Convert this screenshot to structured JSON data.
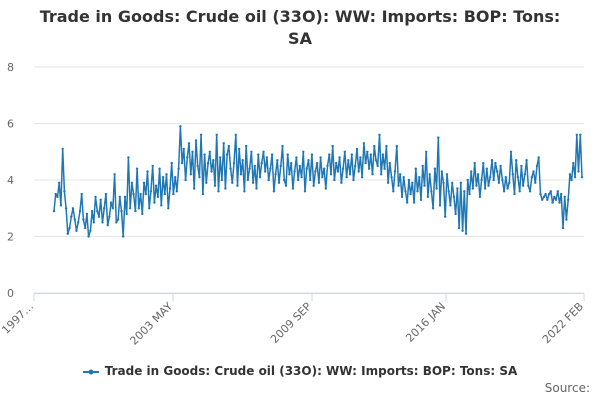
{
  "chart_data": {
    "type": "line",
    "title_line1": "Trade in Goods: Crude oil (33O): WW: Imports: BOP: Tons:",
    "title_line2": "SA",
    "legend": {
      "label": "Trade in Goods: Crude oil (33O): WW: Imports: BOP: Tons: SA",
      "placement": "bottom-center"
    },
    "credits": "Source:",
    "ylim": [
      0,
      8
    ],
    "y_ticks": [
      "0",
      "2",
      "4",
      "6",
      "8"
    ],
    "x_tick_labels": [
      "1997…",
      "2003 MAY",
      "2009 SEP",
      "2016 JAN",
      "2022 FEB"
    ],
    "grid": "horizontal",
    "series_color": "#1f77b4",
    "series": [
      {
        "name": "Trade in Goods: Crude oil (33O): WW: Imports: BOP: Tons: SA",
        "x_start": "1997-01",
        "frequency": "monthly",
        "values": [
          2.9,
          3.5,
          3.4,
          3.9,
          3.1,
          5.1,
          3.6,
          3.0,
          2.1,
          2.3,
          2.7,
          3.0,
          2.6,
          2.2,
          2.5,
          2.9,
          3.5,
          2.6,
          2.3,
          2.8,
          2.0,
          2.2,
          2.9,
          2.5,
          3.4,
          2.9,
          2.7,
          3.3,
          2.5,
          3.0,
          3.5,
          2.4,
          2.7,
          3.2,
          3.0,
          4.2,
          2.5,
          2.6,
          3.4,
          2.9,
          2.0,
          3.4,
          2.8,
          4.8,
          3.0,
          3.9,
          3.5,
          2.9,
          4.4,
          3.0,
          3.5,
          2.8,
          3.9,
          3.5,
          4.3,
          3.0,
          3.6,
          4.5,
          3.2,
          3.8,
          3.4,
          4.4,
          3.1,
          4.1,
          3.5,
          4.2,
          3.0,
          3.7,
          4.6,
          3.5,
          4.1,
          3.6,
          4.4,
          5.9,
          4.6,
          5.1,
          4.0,
          4.8,
          5.3,
          4.2,
          5.0,
          3.7,
          5.4,
          4.5,
          4.1,
          5.6,
          3.5,
          4.9,
          3.9,
          4.6,
          5.0,
          4.3,
          4.7,
          3.8,
          5.6,
          3.6,
          4.8,
          4.0,
          5.3,
          3.7,
          4.9,
          5.2,
          4.4,
          3.9,
          4.6,
          5.6,
          3.8,
          5.1,
          4.2,
          4.7,
          3.6,
          5.2,
          4.0,
          4.4,
          5.0,
          3.9,
          4.5,
          3.7,
          4.9,
          4.1,
          4.6,
          5.0,
          4.3,
          4.8,
          4.0,
          4.4,
          4.9,
          3.6,
          4.2,
          4.7,
          3.9,
          4.5,
          5.2,
          4.0,
          3.8,
          4.9,
          4.2,
          4.6,
          3.7,
          4.3,
          4.8,
          4.0,
          4.5,
          4.1,
          5.0,
          3.6,
          4.4,
          4.7,
          4.0,
          4.9,
          3.8,
          4.3,
          4.6,
          3.9,
          4.8,
          4.1,
          4.4,
          3.7,
          4.5,
          4.9,
          4.2,
          5.2,
          4.0,
          4.6,
          4.3,
          4.8,
          3.9,
          4.4,
          5.0,
          4.1,
          4.7,
          4.2,
          4.9,
          4.0,
          4.5,
          5.1,
          4.3,
          4.8,
          4.1,
          5.3,
          4.6,
          5.0,
          4.4,
          4.9,
          4.2,
          5.2,
          4.7,
          4.5,
          5.6,
          4.2,
          4.9,
          4.4,
          5.2,
          3.9,
          4.6,
          4.1,
          3.6,
          4.3,
          5.2,
          3.8,
          4.2,
          3.4,
          4.1,
          3.6,
          3.2,
          4.0,
          3.5,
          3.9,
          3.2,
          4.4,
          3.6,
          4.1,
          3.3,
          4.5,
          3.8,
          5.0,
          3.4,
          4.2,
          3.6,
          3.0,
          4.4,
          3.7,
          5.5,
          3.1,
          4.3,
          3.9,
          2.7,
          4.2,
          3.6,
          3.1,
          3.9,
          3.4,
          2.8,
          3.7,
          2.3,
          3.9,
          2.2,
          3.6,
          2.1,
          4.0,
          3.5,
          4.3,
          3.7,
          4.6,
          3.8,
          4.2,
          3.4,
          4.0,
          4.6,
          3.7,
          4.4,
          3.8,
          4.1,
          4.7,
          4.0,
          4.6,
          4.3,
          3.9,
          4.5,
          4.0,
          3.6,
          4.1,
          3.7,
          3.9,
          5.0,
          4.2,
          3.5,
          4.7,
          4.1,
          3.6,
          4.5,
          3.8,
          4.2,
          4.7,
          3.8,
          3.6,
          4.1,
          4.3,
          3.9,
          4.5,
          4.8,
          3.5,
          3.3,
          3.4,
          3.5,
          3.3,
          3.5,
          3.6,
          3.2,
          3.4,
          3.3,
          3.6,
          3.2,
          3.5,
          2.3,
          3.4,
          2.6,
          3.3,
          4.2,
          4.0,
          4.6,
          4.1,
          5.6,
          4.3,
          5.6,
          4.1
        ]
      }
    ]
  }
}
